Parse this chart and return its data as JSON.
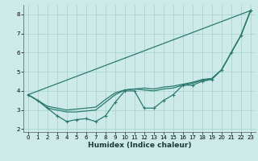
{
  "xlabel": "Humidex (Indice chaleur)",
  "ylabel": "",
  "bg_color": "#cceae7",
  "grid_color": "#aad4d0",
  "line_color": "#2a7a70",
  "xlim": [
    -0.5,
    23.5
  ],
  "ylim": [
    1.85,
    8.5
  ],
  "xticks": [
    0,
    1,
    2,
    3,
    4,
    5,
    6,
    7,
    8,
    9,
    10,
    11,
    12,
    13,
    14,
    15,
    16,
    17,
    18,
    19,
    20,
    21,
    22,
    23
  ],
  "yticks": [
    2,
    3,
    4,
    5,
    6,
    7,
    8
  ],
  "line1_x": [
    0,
    1,
    2,
    3,
    4,
    5,
    6,
    7,
    8,
    9,
    10,
    11,
    12,
    13,
    14,
    15,
    16,
    17,
    18,
    19,
    20,
    21,
    22,
    23
  ],
  "line1_y": [
    3.8,
    3.5,
    3.1,
    2.7,
    2.4,
    2.5,
    2.55,
    2.4,
    2.7,
    3.4,
    4.0,
    4.0,
    3.1,
    3.1,
    3.5,
    3.8,
    4.3,
    4.3,
    4.5,
    4.6,
    5.1,
    6.0,
    6.9,
    8.2
  ],
  "line2_x": [
    0,
    1,
    2,
    3,
    4,
    5,
    6,
    7,
    8,
    9,
    10,
    11,
    12,
    13,
    14,
    15,
    16,
    17,
    18,
    19,
    20,
    21,
    22,
    23
  ],
  "line2_y": [
    3.8,
    3.5,
    3.1,
    3.0,
    2.9,
    2.9,
    2.95,
    3.0,
    3.4,
    3.8,
    4.05,
    4.1,
    4.05,
    4.0,
    4.1,
    4.15,
    4.3,
    4.4,
    4.55,
    4.65,
    5.1,
    6.0,
    6.9,
    8.2
  ],
  "line3_x": [
    0,
    1,
    2,
    3,
    4,
    5,
    6,
    7,
    8,
    9,
    10,
    11,
    12,
    13,
    14,
    15,
    16,
    17,
    18,
    19,
    20,
    21,
    22,
    23
  ],
  "line3_y": [
    3.8,
    3.5,
    3.2,
    3.1,
    3.0,
    3.05,
    3.1,
    3.15,
    3.55,
    3.9,
    4.05,
    4.1,
    4.15,
    4.1,
    4.2,
    4.25,
    4.35,
    4.45,
    4.6,
    4.65,
    5.1,
    6.0,
    6.9,
    8.2
  ],
  "line4_x": [
    0,
    23
  ],
  "line4_y": [
    3.8,
    8.2
  ],
  "xlabel_fontsize": 6.5,
  "tick_fontsize": 5.0
}
